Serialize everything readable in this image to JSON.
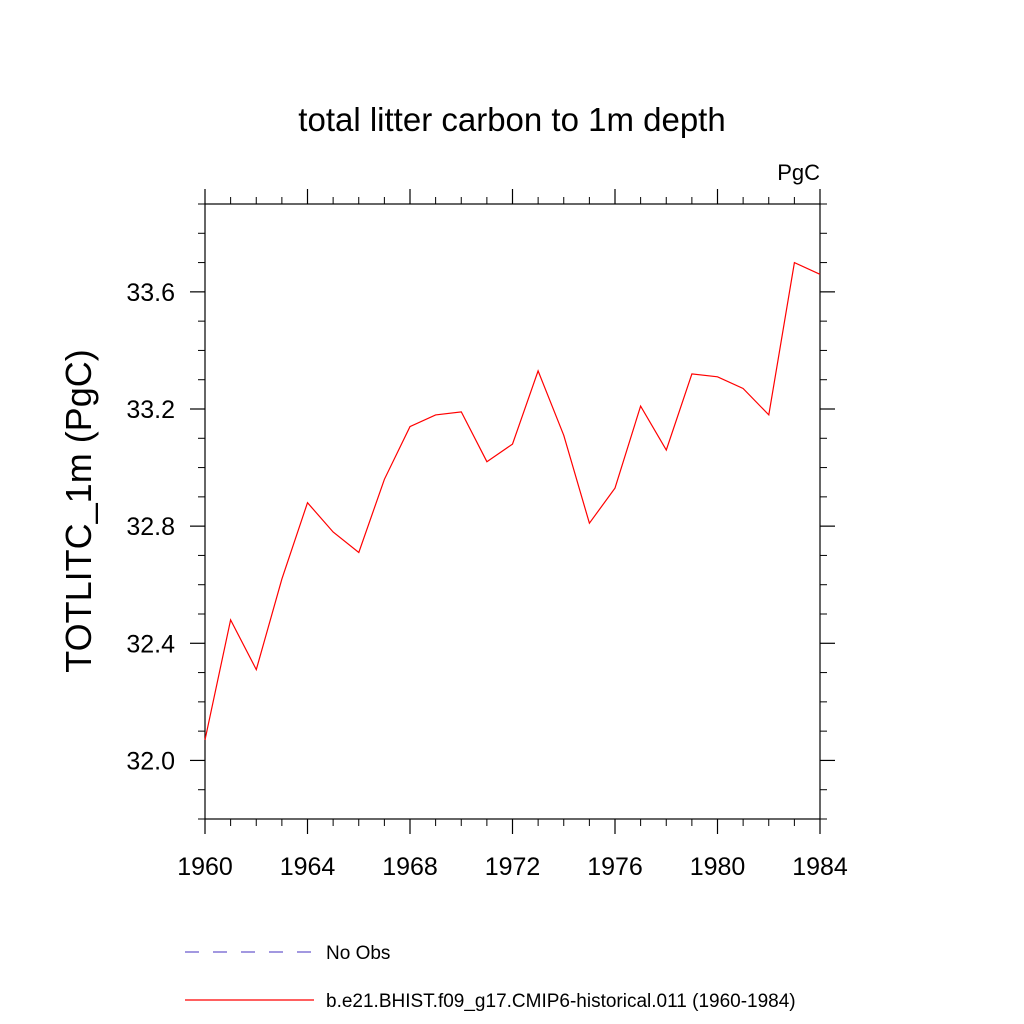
{
  "chart_data": {
    "type": "line",
    "title": "total litter carbon to 1m depth",
    "units": "PgC",
    "xlabel": "",
    "ylabel": "TOTLITC_1m  (PgC)",
    "xlim": [
      1960,
      1984
    ],
    "ylim": [
      31.8,
      33.9
    ],
    "xticks": [
      1960,
      1964,
      1968,
      1972,
      1976,
      1980,
      1984
    ],
    "xtick_labels": [
      "1960",
      "1964",
      "1968",
      "1972",
      "1976",
      "1980",
      "1984"
    ],
    "yticks": [
      32.0,
      32.4,
      32.8,
      33.2,
      33.6
    ],
    "ytick_labels": [
      "32.0",
      "32.4",
      "32.8",
      "33.2",
      "33.6"
    ],
    "grid": false,
    "legend_position": "bottom",
    "series": [
      {
        "name": "No Obs",
        "color": "#6a5acd",
        "style": "dashed",
        "x": [],
        "y": []
      },
      {
        "name": "b.e21.BHIST.f09_g17.CMIP6-historical.011 (1960-1984)",
        "color": "#ff0000",
        "style": "solid",
        "x": [
          1960,
          1961,
          1962,
          1963,
          1964,
          1965,
          1966,
          1967,
          1968,
          1969,
          1970,
          1971,
          1972,
          1973,
          1974,
          1975,
          1976,
          1977,
          1978,
          1979,
          1980,
          1981,
          1982,
          1983,
          1984
        ],
        "y": [
          32.07,
          32.48,
          32.31,
          32.62,
          32.88,
          32.78,
          32.71,
          32.96,
          33.14,
          33.18,
          33.19,
          33.02,
          33.08,
          33.33,
          33.11,
          32.81,
          32.93,
          33.21,
          33.06,
          33.32,
          33.31,
          33.27,
          33.18,
          33.7,
          33.66
        ]
      }
    ]
  }
}
